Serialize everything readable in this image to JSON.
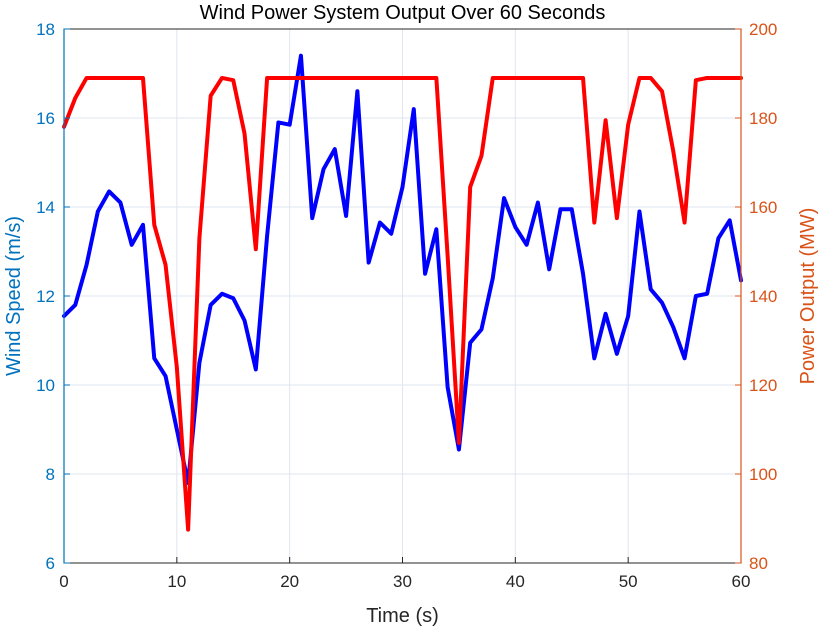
{
  "chart_data": {
    "type": "line",
    "title": "Wind Power System Output Over 60 Seconds",
    "xlabel": "Time (s)",
    "ylabel_left": "Wind Speed (m/s)",
    "ylabel_right": "Power Output (MW)",
    "xlim": [
      0,
      60
    ],
    "ylim_left": [
      6,
      18
    ],
    "ylim_right": [
      80,
      200
    ],
    "x_ticks": [
      0,
      10,
      20,
      30,
      40,
      50,
      60
    ],
    "y_left_ticks": [
      6,
      8,
      10,
      12,
      14,
      16,
      18
    ],
    "y_right_ticks": [
      80,
      100,
      120,
      140,
      160,
      180,
      200
    ],
    "grid": true,
    "colors": {
      "left_axis": "#0072bd",
      "right_axis": "#d95319",
      "wind_line": "#0000ff",
      "power_line": "#ff0000"
    },
    "x": [
      0,
      1,
      2,
      3,
      4,
      5,
      6,
      7,
      8,
      9,
      10,
      11,
      12,
      13,
      14,
      15,
      16,
      17,
      18,
      19,
      20,
      21,
      22,
      23,
      24,
      25,
      26,
      27,
      28,
      29,
      30,
      31,
      32,
      33,
      34,
      35,
      36,
      37,
      38,
      39,
      40,
      41,
      42,
      43,
      44,
      45,
      46,
      47,
      48,
      49,
      50,
      51,
      52,
      53,
      54,
      55,
      56,
      57,
      58,
      59,
      60
    ],
    "series": [
      {
        "name": "Wind Speed",
        "axis": "left",
        "values": [
          11.55,
          11.8,
          12.7,
          13.9,
          14.35,
          14.1,
          13.15,
          13.6,
          10.6,
          10.2,
          9.0,
          7.8,
          10.5,
          11.8,
          12.05,
          11.95,
          11.45,
          10.35,
          13.35,
          15.9,
          15.85,
          17.4,
          13.75,
          14.85,
          15.3,
          13.8,
          16.6,
          12.75,
          13.65,
          13.4,
          14.45,
          16.2,
          12.5,
          13.5,
          9.95,
          8.55,
          10.95,
          11.25,
          12.4,
          14.2,
          13.55,
          13.15,
          14.1,
          12.6,
          13.95,
          13.95,
          12.5,
          10.6,
          11.6,
          10.7,
          11.55,
          13.9,
          12.15,
          11.85,
          11.3,
          10.6,
          12.0,
          12.05,
          13.3,
          13.7,
          12.35
        ]
      },
      {
        "name": "Power Output",
        "axis": "right",
        "values": [
          178,
          184.5,
          189,
          189,
          189,
          189,
          189,
          189,
          156,
          147,
          124,
          87.5,
          153,
          185,
          189,
          188.5,
          176.5,
          150.5,
          189,
          189,
          189,
          189,
          189,
          189,
          189,
          189,
          189,
          189,
          189,
          189,
          189,
          189,
          189,
          189,
          149,
          107,
          164.5,
          171.5,
          189,
          189,
          189,
          189,
          189,
          189,
          189,
          189,
          189,
          156.5,
          179.5,
          157.5,
          178.5,
          189,
          189,
          186,
          172.5,
          156.5,
          188.5,
          189,
          189,
          189,
          189
        ]
      }
    ]
  }
}
